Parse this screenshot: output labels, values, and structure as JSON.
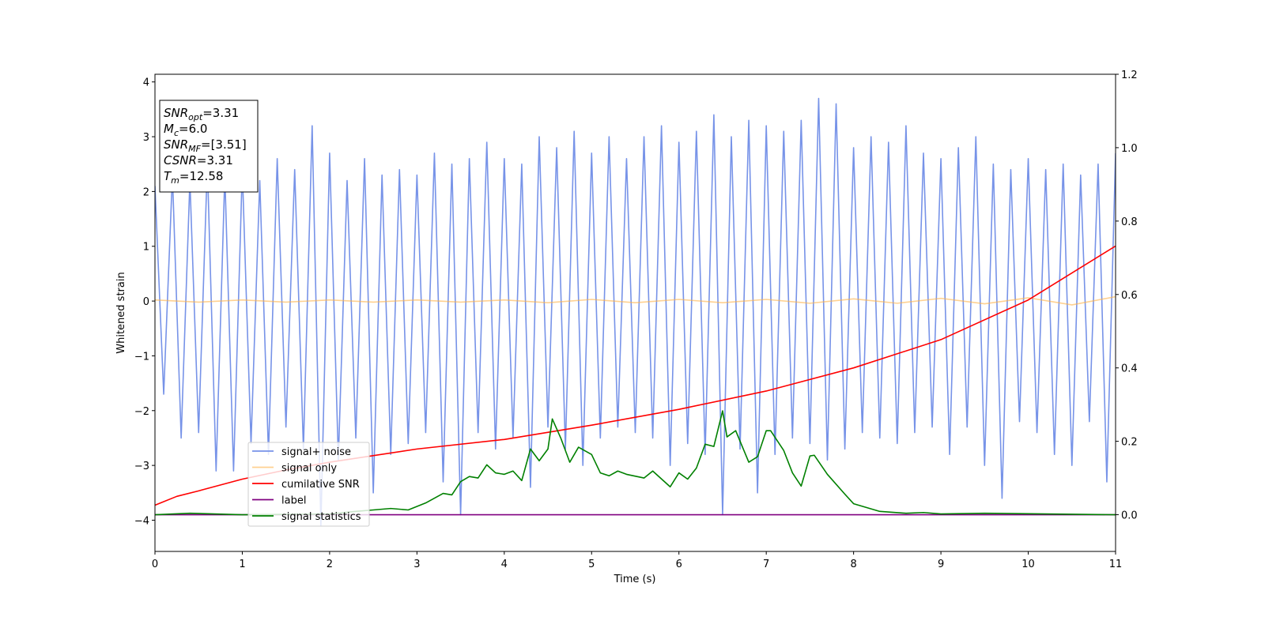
{
  "chart_data": {
    "type": "line",
    "xlabel": "Time (s)",
    "ylabel": "Whitened strain",
    "xlim": [
      0,
      11
    ],
    "ylim": [
      -4.57,
      4.14
    ],
    "y2lim": [
      -0.1,
      1.2
    ],
    "xticks": [
      0,
      1,
      2,
      3,
      4,
      5,
      6,
      7,
      8,
      9,
      10,
      11
    ],
    "yticks": [
      -4,
      -3,
      -2,
      -1,
      0,
      1,
      2,
      3,
      4
    ],
    "y2ticks": [
      {
        "value": 0,
        "label": "0.0"
      },
      {
        "value": 0.2,
        "label": "0.2"
      },
      {
        "value": 0.4,
        "label": "0.4"
      },
      {
        "value": 0.6,
        "label": "0.6"
      },
      {
        "value": 0.8,
        "label": "0.8"
      },
      {
        "value": 1.0,
        "label": "1.0"
      },
      {
        "value": 1.2,
        "label": "1.2"
      }
    ],
    "annotations": [
      {
        "symbol": "SNR",
        "sub": "opt",
        "rest": "=3.31"
      },
      {
        "symbol": "M",
        "sub": "c",
        "rest": "=6.0"
      },
      {
        "symbol": "SNR",
        "sub": "MF",
        "rest": "=[3.51]"
      },
      {
        "symbol": "CSNR",
        "rest": "=3.31"
      },
      {
        "symbol": "T",
        "sub": "m",
        "rest": "=12.58"
      }
    ],
    "series": [
      {
        "name": "signal+ noise",
        "color": "#7793e8",
        "x": [
          0,
          0.1,
          0.2,
          0.3,
          0.4,
          0.5,
          0.6,
          0.7,
          0.8,
          0.9,
          1,
          1.1,
          1.2,
          1.3,
          1.4,
          1.5,
          1.6,
          1.7,
          1.8,
          1.9,
          2,
          2.1,
          2.2,
          2.3,
          2.4,
          2.5,
          2.6,
          2.7,
          2.8,
          2.9,
          3,
          3.1,
          3.2,
          3.3,
          3.4,
          3.5,
          3.6,
          3.7,
          3.8,
          3.9,
          4,
          4.1,
          4.2,
          4.3,
          4.4,
          4.5,
          4.6,
          4.7,
          4.8,
          4.9,
          5,
          5.1,
          5.2,
          5.3,
          5.4,
          5.5,
          5.6,
          5.7,
          5.8,
          5.9,
          6,
          6.1,
          6.2,
          6.3,
          6.4,
          6.5,
          6.6,
          6.7,
          6.8,
          6.9,
          7,
          7.1,
          7.2,
          7.3,
          7.4,
          7.5,
          7.6,
          7.7,
          7.8,
          7.9,
          8,
          8.1,
          8.2,
          8.3,
          8.4,
          8.5,
          8.6,
          8.7,
          8.8,
          8.9,
          9,
          9.1,
          9.2,
          9.3,
          9.4,
          9.5,
          9.6,
          9.7,
          9.8,
          9.9,
          10,
          10.1,
          10.2,
          10.3,
          10.4,
          10.5,
          10.6,
          10.7,
          10.8,
          10.9,
          11
        ],
        "values": [
          2.1,
          -1.7,
          2.3,
          -2.5,
          2.2,
          -2.4,
          2.5,
          -3.1,
          2.3,
          -3.1,
          2.4,
          -2.6,
          2.2,
          -2.8,
          2.6,
          -2.3,
          2.4,
          -2.7,
          3.2,
          -4.1,
          2.7,
          -2.9,
          2.2,
          -2.5,
          2.6,
          -3.5,
          2.3,
          -2.8,
          2.4,
          -2.6,
          2.3,
          -2.4,
          2.7,
          -3.3,
          2.5,
          -3.9,
          2.6,
          -2.4,
          2.9,
          -2.7,
          2.6,
          -2.5,
          2.5,
          -3.4,
          3.0,
          -2.3,
          2.8,
          -2.7,
          3.1,
          -3.0,
          2.7,
          -2.5,
          3.0,
          -2.3,
          2.6,
          -2.4,
          3.0,
          -2.5,
          3.2,
          -3.0,
          2.9,
          -2.6,
          3.1,
          -2.8,
          3.4,
          -3.9,
          3.0,
          -2.7,
          3.3,
          -3.5,
          3.2,
          -2.8,
          3.1,
          -2.5,
          3.3,
          -2.6,
          3.7,
          -2.9,
          3.6,
          -2.7,
          2.8,
          -2.4,
          3.0,
          -2.5,
          2.9,
          -2.6,
          3.2,
          -2.4,
          2.7,
          -2.3,
          2.6,
          -2.8,
          2.8,
          -2.3,
          3.0,
          -3.0,
          2.5,
          -3.6,
          2.4,
          -2.2,
          2.6,
          -2.4,
          2.4,
          -2.8,
          2.5,
          -3.0,
          2.3,
          -2.2,
          2.5,
          -3.3,
          2.7
        ]
      },
      {
        "name": "signal only",
        "color": "#ffb347",
        "x": [
          0,
          0.5,
          1,
          1.5,
          2,
          2.5,
          3,
          3.5,
          4,
          4.5,
          5,
          5.5,
          6,
          6.5,
          7,
          7.5,
          8,
          8.5,
          9,
          9.5,
          10,
          10.5,
          11
        ],
        "values": [
          0.02,
          -0.02,
          0.02,
          -0.02,
          0.02,
          -0.02,
          0.02,
          -0.02,
          0.02,
          -0.03,
          0.03,
          -0.03,
          0.03,
          -0.03,
          0.03,
          -0.04,
          0.04,
          -0.04,
          0.05,
          -0.05,
          0.06,
          -0.07,
          0.08
        ]
      },
      {
        "name": "cumilative SNR",
        "color": "#ff0000",
        "axis": "y2",
        "x": [
          0,
          0.25,
          0.5,
          1,
          1.5,
          2,
          3,
          4,
          5,
          6,
          7,
          8,
          9,
          10,
          11
        ],
        "values": [
          0.026,
          0.05,
          0.065,
          0.097,
          0.122,
          0.143,
          0.179,
          0.205,
          0.244,
          0.287,
          0.337,
          0.4,
          0.477,
          0.585,
          0.732
        ]
      },
      {
        "name": "label",
        "color": "#800080",
        "axis": "y2",
        "x": [
          0,
          11
        ],
        "values": [
          0,
          0
        ]
      },
      {
        "name": "signal statistics",
        "color": "#008000",
        "axis": "y2",
        "x": [
          0,
          0.4,
          1,
          2,
          2.3,
          2.5,
          2.7,
          2.9,
          3.1,
          3.3,
          3.4,
          3.5,
          3.6,
          3.7,
          3.8,
          3.9,
          4,
          4.1,
          4.2,
          4.3,
          4.4,
          4.5,
          4.55,
          4.65,
          4.75,
          4.85,
          5,
          5.1,
          5.2,
          5.3,
          5.4,
          5.6,
          5.7,
          5.9,
          6,
          6.1,
          6.2,
          6.3,
          6.4,
          6.5,
          6.55,
          6.65,
          6.8,
          6.9,
          7,
          7.05,
          7.2,
          7.3,
          7.4,
          7.5,
          7.55,
          7.7,
          7.9,
          8,
          8.3,
          8.6,
          8.8,
          9,
          9.5,
          11
        ],
        "values": [
          0,
          0.004,
          0,
          0.002,
          0.009,
          0.013,
          0.017,
          0.013,
          0.032,
          0.058,
          0.054,
          0.09,
          0.104,
          0.1,
          0.136,
          0.114,
          0.11,
          0.119,
          0.093,
          0.179,
          0.147,
          0.179,
          0.261,
          0.207,
          0.143,
          0.184,
          0.164,
          0.114,
          0.106,
          0.119,
          0.11,
          0.1,
          0.119,
          0.076,
          0.114,
          0.097,
          0.127,
          0.192,
          0.186,
          0.283,
          0.212,
          0.229,
          0.143,
          0.158,
          0.229,
          0.229,
          0.175,
          0.114,
          0.078,
          0.16,
          0.162,
          0.11,
          0.056,
          0.03,
          0.009,
          0.004,
          0.006,
          0.002,
          0.004,
          0
        ]
      }
    ]
  }
}
